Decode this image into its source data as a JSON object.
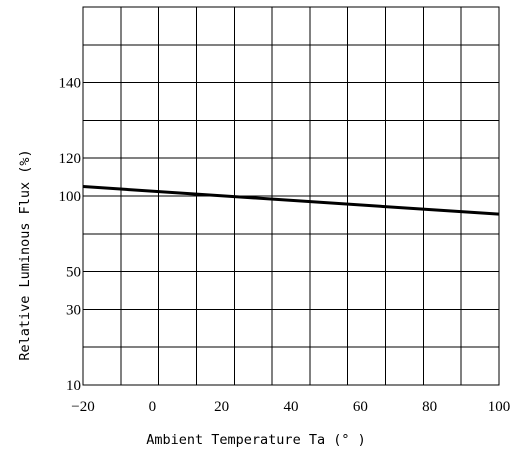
{
  "chart_data": {
    "type": "line",
    "title": "",
    "xlabel": "Ambient Temperature Ta (° )",
    "ylabel": "Relative Luminous Flux (%)",
    "xlim": [
      -20,
      100
    ],
    "x_ticks": [
      -20,
      0,
      20,
      40,
      60,
      80,
      100
    ],
    "y_tick_labels": [
      "10",
      "30",
      "50",
      "100",
      "120",
      "140"
    ],
    "grid": true,
    "legend": "none",
    "series": [
      {
        "x": [
          -20,
          100
        ],
        "y": [
          105,
          88
        ]
      }
    ]
  }
}
